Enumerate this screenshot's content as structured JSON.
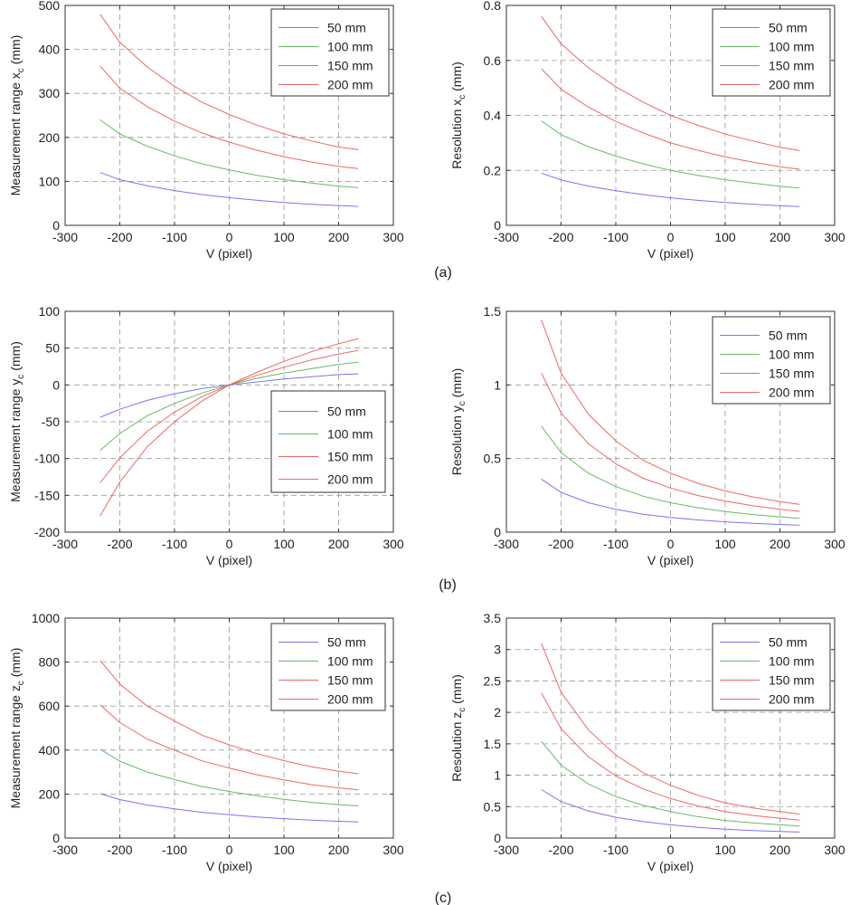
{
  "panel_labels": [
    "(a)",
    "(b)",
    "(c)"
  ],
  "colors": {
    "50 mm": "#7777ee",
    "100 mm": "#66bb66",
    "150 mm": "#ee6666",
    "200 mm": "#ee6666"
  },
  "chart_data": [
    {
      "type": "line",
      "ylabel": "Measurement range x",
      "ylabel_sub": "c",
      "ylabel_unit": " (mm)",
      "xlabel": "V (pixel)",
      "xlim": [
        -300,
        300
      ],
      "ylim": [
        0,
        500
      ],
      "xticks": [
        -300,
        -200,
        -100,
        0,
        100,
        200,
        300
      ],
      "yticks": [
        0,
        100,
        200,
        300,
        400,
        500
      ],
      "xtick_labels": [
        "-300",
        "-200",
        "-100",
        "0",
        "100",
        "200",
        "300"
      ],
      "ytick_labels": [
        "0",
        "100",
        "200",
        "300",
        "400",
        "500"
      ],
      "grid": true,
      "legend_position": "top-right",
      "x": [
        -236,
        -200,
        -150,
        -100,
        -50,
        0,
        50,
        100,
        150,
        200,
        236
      ],
      "series": [
        {
          "name": "50 mm",
          "values": [
            120,
            104,
            90,
            79,
            70,
            63,
            57,
            52,
            48,
            45,
            43
          ]
        },
        {
          "name": "100 mm",
          "values": [
            240,
            208,
            180,
            158,
            140,
            126,
            114,
            104,
            96,
            89,
            86
          ]
        },
        {
          "name": "150 mm",
          "values": [
            362,
            312,
            270,
            237,
            210,
            189,
            171,
            156,
            144,
            134,
            129
          ]
        },
        {
          "name": "200 mm",
          "values": [
            480,
            416,
            360,
            316,
            280,
            252,
            228,
            208,
            192,
            178,
            172
          ]
        }
      ]
    },
    {
      "type": "line",
      "ylabel": "Resolution x",
      "ylabel_sub": "c",
      "ylabel_unit": " (mm)",
      "xlabel": "V (pixel)",
      "xlim": [
        -300,
        300
      ],
      "ylim": [
        0,
        0.8
      ],
      "xticks": [
        -300,
        -200,
        -100,
        0,
        100,
        200,
        300
      ],
      "yticks": [
        0,
        0.2,
        0.4,
        0.6,
        0.8
      ],
      "xtick_labels": [
        "-300",
        "-200",
        "-100",
        "0",
        "100",
        "200",
        "300"
      ],
      "ytick_labels": [
        "0",
        "0.2",
        "0.4",
        "0.6",
        "0.8"
      ],
      "grid": true,
      "legend_position": "top-right",
      "x": [
        -236,
        -200,
        -150,
        -100,
        -50,
        0,
        50,
        100,
        150,
        200,
        236
      ],
      "series": [
        {
          "name": "50 mm",
          "values": [
            0.19,
            0.165,
            0.143,
            0.126,
            0.112,
            0.1,
            0.091,
            0.083,
            0.077,
            0.071,
            0.068
          ]
        },
        {
          "name": "100 mm",
          "values": [
            0.38,
            0.33,
            0.286,
            0.252,
            0.224,
            0.2,
            0.182,
            0.166,
            0.154,
            0.142,
            0.136
          ]
        },
        {
          "name": "150 mm",
          "values": [
            0.57,
            0.495,
            0.43,
            0.378,
            0.336,
            0.3,
            0.273,
            0.249,
            0.23,
            0.213,
            0.204
          ]
        },
        {
          "name": "200 mm",
          "values": [
            0.76,
            0.66,
            0.573,
            0.504,
            0.448,
            0.4,
            0.364,
            0.332,
            0.307,
            0.284,
            0.272
          ]
        }
      ]
    },
    {
      "type": "line",
      "ylabel": "Measurement range y",
      "ylabel_sub": "c",
      "ylabel_unit": " (mm)",
      "xlabel": "V (pixel)",
      "xlim": [
        -300,
        300
      ],
      "ylim": [
        -200,
        100
      ],
      "xticks": [
        -300,
        -200,
        -100,
        0,
        100,
        200,
        300
      ],
      "yticks": [
        -200,
        -150,
        -100,
        -50,
        0,
        50,
        100
      ],
      "xtick_labels": [
        "-300",
        "-200",
        "-100",
        "0",
        "100",
        "200",
        "300"
      ],
      "ytick_labels": [
        "-200",
        "-150",
        "-100",
        "-50",
        "0",
        "50",
        "100"
      ],
      "grid": true,
      "legend_position": "center-right",
      "x": [
        -236,
        -200,
        -150,
        -100,
        -50,
        0,
        50,
        100,
        150,
        200,
        236
      ],
      "series": [
        {
          "name": "50 mm",
          "values": [
            -44,
            -33,
            -21,
            -12,
            -5,
            0,
            4,
            8,
            11,
            14,
            15
          ]
        },
        {
          "name": "100 mm",
          "values": [
            -89,
            -66,
            -42,
            -25,
            -11,
            0,
            9,
            16,
            22,
            28,
            31
          ]
        },
        {
          "name": "150 mm",
          "values": [
            -133,
            -99,
            -63,
            -37,
            -16,
            0,
            13,
            24,
            34,
            42,
            47
          ]
        },
        {
          "name": "200 mm",
          "values": [
            -178,
            -132,
            -84,
            -50,
            -22,
            0,
            17,
            32,
            45,
            56,
            63
          ]
        }
      ]
    },
    {
      "type": "line",
      "ylabel": "Resolution y",
      "ylabel_sub": "c",
      "ylabel_unit": " (mm)",
      "xlabel": "V (pixel)",
      "xlim": [
        -300,
        300
      ],
      "ylim": [
        0,
        1.5
      ],
      "xticks": [
        -300,
        -200,
        -100,
        0,
        100,
        200,
        300
      ],
      "yticks": [
        0,
        0.5,
        1,
        1.5
      ],
      "xtick_labels": [
        "-300",
        "-200",
        "-100",
        "0",
        "100",
        "200",
        "300"
      ],
      "ytick_labels": [
        "0",
        "0.5",
        "1",
        "1.5"
      ],
      "grid": true,
      "legend_position": "top-right",
      "x": [
        -236,
        -200,
        -150,
        -100,
        -50,
        0,
        50,
        100,
        150,
        200,
        236
      ],
      "series": [
        {
          "name": "50 mm",
          "values": [
            0.36,
            0.27,
            0.2,
            0.155,
            0.122,
            0.1,
            0.083,
            0.07,
            0.06,
            0.052,
            0.047
          ]
        },
        {
          "name": "100 mm",
          "values": [
            0.72,
            0.54,
            0.4,
            0.31,
            0.244,
            0.2,
            0.166,
            0.14,
            0.12,
            0.104,
            0.094
          ]
        },
        {
          "name": "150 mm",
          "values": [
            1.08,
            0.81,
            0.6,
            0.465,
            0.366,
            0.3,
            0.249,
            0.21,
            0.18,
            0.156,
            0.141
          ]
        },
        {
          "name": "200 mm",
          "values": [
            1.44,
            1.08,
            0.8,
            0.62,
            0.488,
            0.4,
            0.332,
            0.28,
            0.24,
            0.208,
            0.188
          ]
        }
      ]
    },
    {
      "type": "line",
      "ylabel": "Measurement range z",
      "ylabel_sub": "c",
      "ylabel_unit": " (mm)",
      "xlabel": "V (pixel)",
      "xlim": [
        -300,
        300
      ],
      "ylim": [
        0,
        1000
      ],
      "xticks": [
        -300,
        -200,
        -100,
        0,
        100,
        200,
        300
      ],
      "yticks": [
        0,
        200,
        400,
        600,
        800,
        1000
      ],
      "xtick_labels": [
        "-300",
        "-200",
        "-100",
        "0",
        "100",
        "200",
        "300"
      ],
      "ytick_labels": [
        "0",
        "200",
        "400",
        "600",
        "800",
        "1000"
      ],
      "grid": true,
      "legend_position": "top-right",
      "x": [
        -236,
        -200,
        -150,
        -100,
        -50,
        0,
        50,
        100,
        150,
        200,
        236
      ],
      "series": [
        {
          "name": "50 mm",
          "values": [
            202,
            175,
            150,
            133,
            117,
            106,
            96,
            88,
            81,
            76,
            73
          ]
        },
        {
          "name": "100 mm",
          "values": [
            404,
            350,
            300,
            266,
            234,
            212,
            192,
            176,
            162,
            152,
            146
          ]
        },
        {
          "name": "150 mm",
          "values": [
            606,
            525,
            450,
            399,
            351,
            318,
            288,
            264,
            243,
            228,
            219
          ]
        },
        {
          "name": "200 mm",
          "values": [
            808,
            700,
            600,
            532,
            468,
            424,
            384,
            352,
            324,
            304,
            292
          ]
        }
      ]
    },
    {
      "type": "line",
      "ylabel": "Resolution z",
      "ylabel_sub": "c",
      "ylabel_unit": " (mm)",
      "xlabel": "V (pixel)",
      "xlim": [
        -300,
        300
      ],
      "ylim": [
        0,
        3.5
      ],
      "xticks": [
        -300,
        -200,
        -100,
        0,
        100,
        200,
        300
      ],
      "yticks": [
        0,
        0.5,
        1,
        1.5,
        2,
        2.5,
        3,
        3.5
      ],
      "xtick_labels": [
        "-300",
        "-200",
        "-100",
        "0",
        "100",
        "200",
        "300"
      ],
      "ytick_labels": [
        "0",
        "0.5",
        "1",
        "1.5",
        "2",
        "2.5",
        "3",
        "3.5"
      ],
      "grid": true,
      "legend_position": "top-right",
      "x": [
        -236,
        -200,
        -150,
        -100,
        -50,
        0,
        50,
        100,
        150,
        200,
        236
      ],
      "series": [
        {
          "name": "50 mm",
          "values": [
            0.77,
            0.58,
            0.43,
            0.33,
            0.26,
            0.21,
            0.17,
            0.14,
            0.12,
            0.105,
            0.095
          ]
        },
        {
          "name": "100 mm",
          "values": [
            1.54,
            1.16,
            0.86,
            0.66,
            0.52,
            0.42,
            0.34,
            0.28,
            0.24,
            0.21,
            0.19
          ]
        },
        {
          "name": "150 mm",
          "values": [
            2.31,
            1.74,
            1.29,
            0.99,
            0.78,
            0.63,
            0.51,
            0.42,
            0.36,
            0.315,
            0.285
          ]
        },
        {
          "name": "200 mm",
          "values": [
            3.1,
            2.32,
            1.72,
            1.32,
            1.04,
            0.84,
            0.68,
            0.56,
            0.48,
            0.42,
            0.38
          ]
        }
      ]
    }
  ]
}
